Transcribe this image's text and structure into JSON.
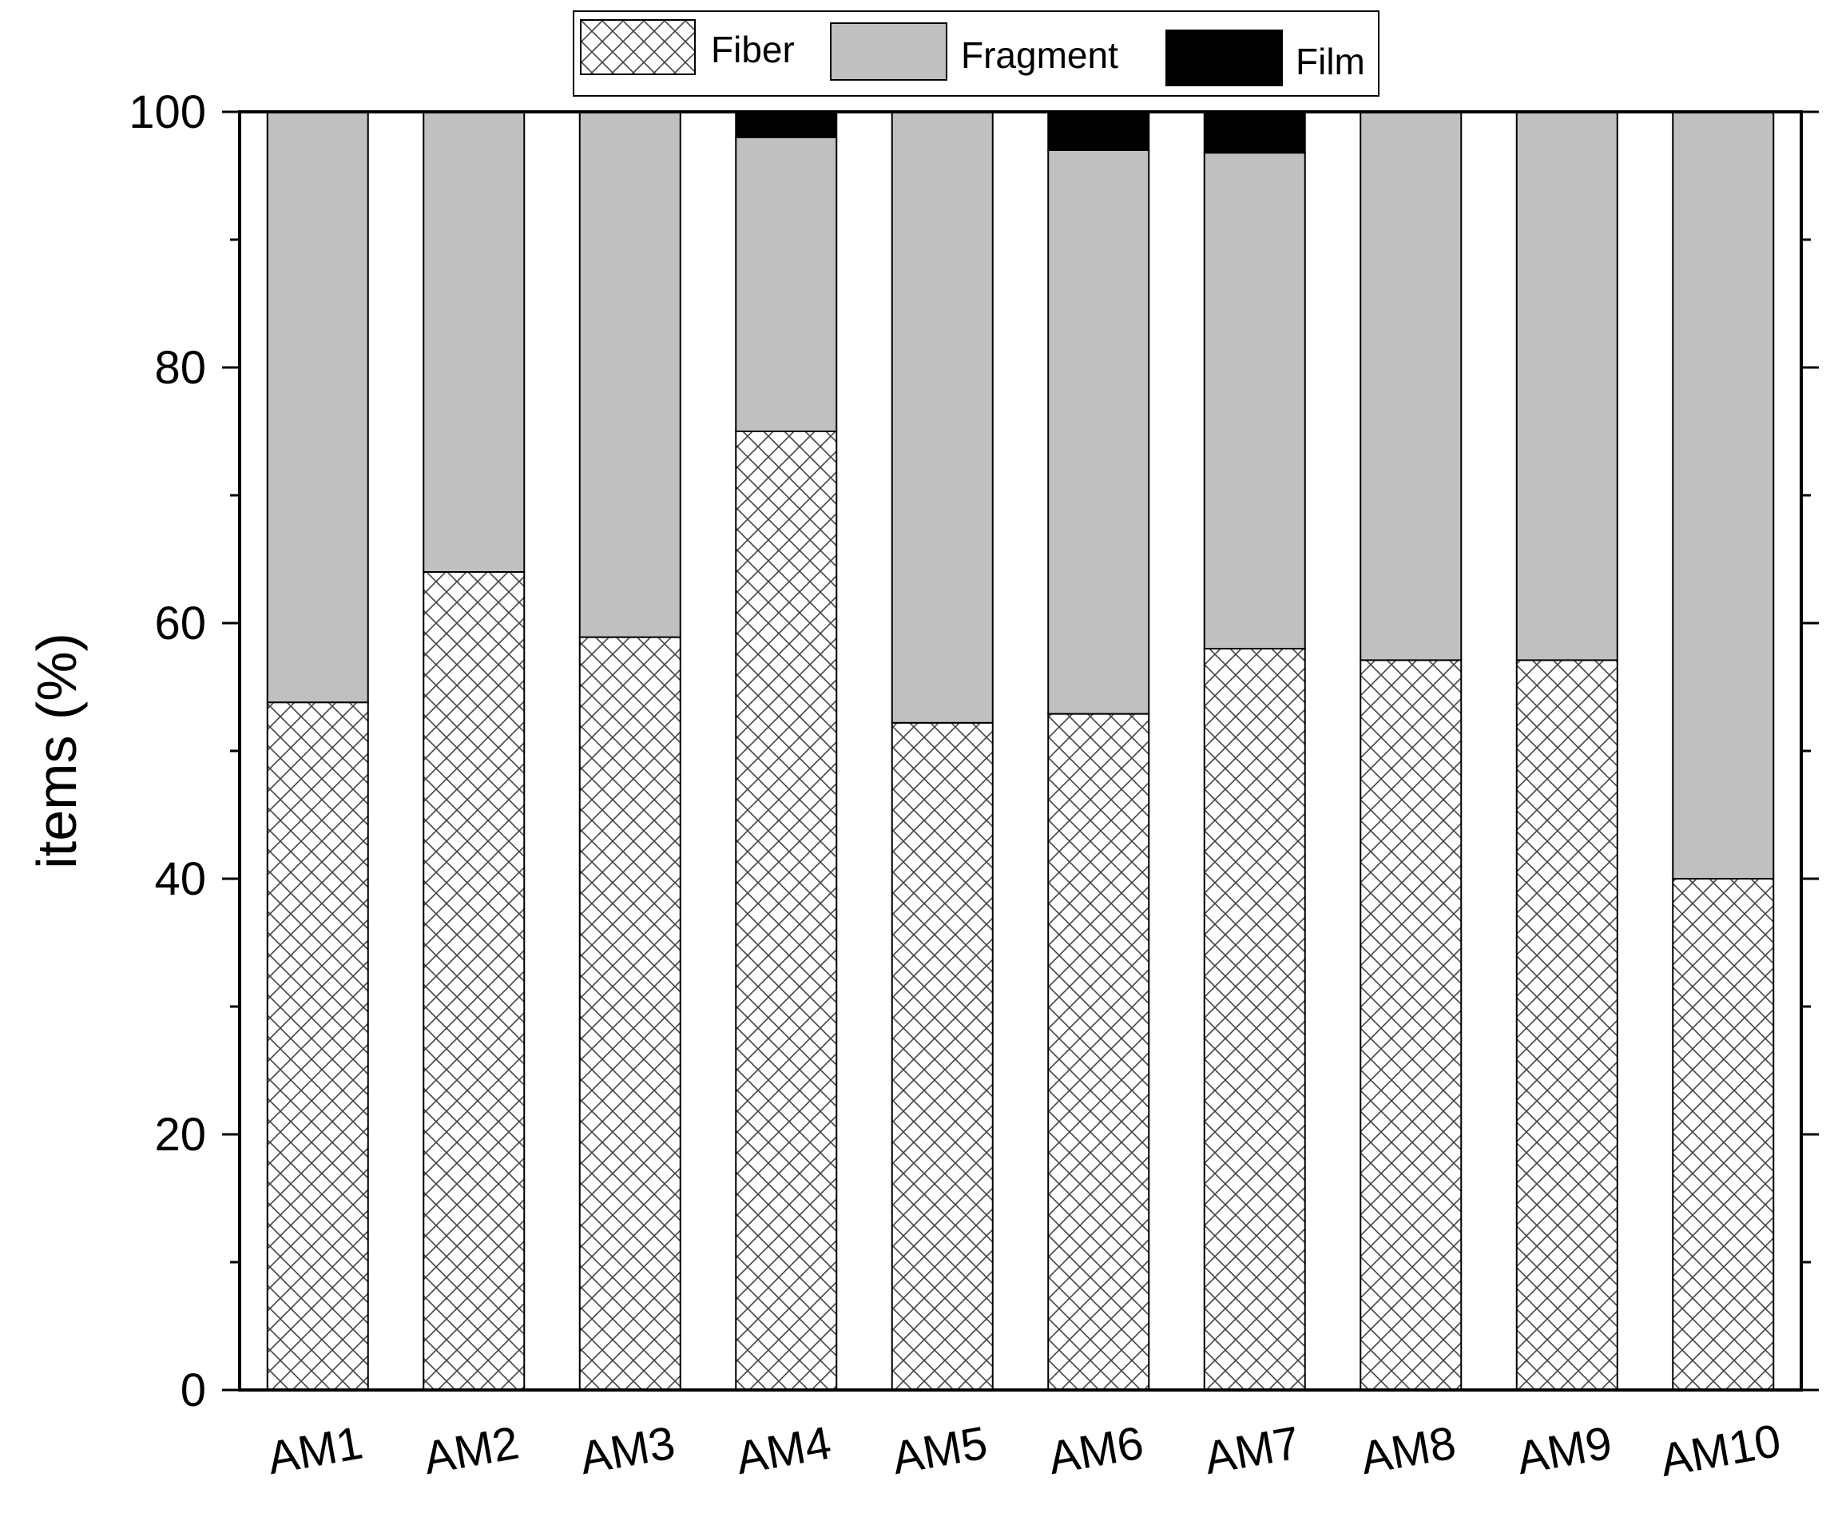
{
  "chart_data": {
    "type": "bar",
    "stacked": true,
    "percent_stacked": true,
    "categories": [
      "AM1",
      "AM2",
      "AM3",
      "AM4",
      "AM5",
      "AM6",
      "AM7",
      "AM8",
      "AM9",
      "AM10"
    ],
    "series": [
      {
        "name": "Fiber",
        "values": [
          53.8,
          64.0,
          58.9,
          75.0,
          52.2,
          52.9,
          58.0,
          57.1,
          57.1,
          40.0
        ]
      },
      {
        "name": "Fragment",
        "values": [
          46.2,
          36.0,
          41.1,
          23.0,
          47.8,
          44.1,
          38.8,
          42.9,
          42.9,
          60.0
        ]
      },
      {
        "name": "Film",
        "values": [
          0,
          0,
          0,
          2.0,
          0,
          3.0,
          3.2,
          0,
          0,
          0
        ]
      }
    ],
    "title": "",
    "xlabel": "",
    "ylabel": "items (%)",
    "ylim": [
      0,
      100
    ],
    "yticks": [
      0,
      20,
      40,
      60,
      80,
      100
    ],
    "grid": false,
    "legend": {
      "placement": "top-center",
      "entries": [
        "Fiber",
        "Fragment",
        "Film"
      ]
    },
    "colors": {
      "Fiber": "crosshatch-on-white",
      "Fragment": "#c0c0c0",
      "Film": "#000000"
    }
  }
}
